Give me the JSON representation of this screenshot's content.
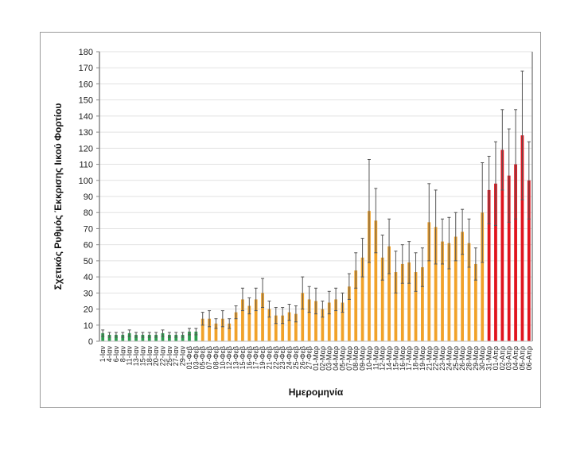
{
  "chart_data": {
    "type": "bar",
    "title": "",
    "xlabel": "Ημερομηνία",
    "ylabel": "Σχετικός Ρυθμός Έκκρισης Ιικού Φορτίου",
    "ylim": [
      0,
      180
    ],
    "yticks": [
      0,
      10,
      20,
      30,
      40,
      50,
      60,
      70,
      80,
      90,
      100,
      110,
      120,
      130,
      140,
      150,
      160,
      170,
      180
    ],
    "grid": true,
    "colors": {
      "green": "#2e9e4f",
      "orange": "#f0a22a",
      "red": "#e0141e",
      "error": "#555555"
    },
    "categories": [
      "1-Ιαν",
      "4-Ιαν",
      "6-Ιαν",
      "8-Ιαν",
      "11-Ιαν",
      "13-Ιαν",
      "15-Ιαν",
      "18-Ιαν",
      "20-Ιαν",
      "22-Ιαν",
      "25-Ιαν",
      "27-Ιαν",
      "29-Ιαν",
      "01-Φεβ",
      "03-Φεβ",
      "05-Φεβ",
      "07-Φεβ",
      "08-Φεβ",
      "10-Φεβ",
      "12-Φεβ",
      "13-Φεβ",
      "15-Φεβ",
      "16-Φεβ",
      "17-Φεβ",
      "19-Φεβ",
      "21-Φεβ",
      "22-Φεβ",
      "23-Φεβ",
      "24-Φεβ",
      "25-Φεβ",
      "26-Φεβ",
      "27-Φεβ",
      "01-Μαρ",
      "02-Μαρ",
      "03-Μαρ",
      "04-Μαρ",
      "05-Μαρ",
      "07-Μαρ",
      "08-Μαρ",
      "09-Μαρ",
      "10-Μαρ",
      "11-Μαρ",
      "12-Μαρ",
      "14-Μαρ",
      "15-Μαρ",
      "16-Μαρ",
      "17-Μαρ",
      "18-Μαρ",
      "19-Μαρ",
      "21-Μαρ",
      "22-Μαρ",
      "23-Μαρ",
      "24-Μαρ",
      "25-Μαρ",
      "26-Μαρ",
      "28-Μαρ",
      "29-Μαρ",
      "30-Μαρ",
      "31-Μαρ",
      "01-Απρ",
      "02-Απρ",
      "03-Απρ",
      "04-Απρ",
      "05-Απρ",
      "06-Απρ"
    ],
    "values": [
      5,
      4,
      4,
      4,
      5,
      4,
      4,
      4,
      4,
      5,
      4,
      4,
      4,
      6,
      6,
      14,
      14,
      11,
      14,
      11,
      18,
      26,
      22,
      26,
      30,
      20,
      16,
      16,
      18,
      17,
      30,
      26,
      25,
      20,
      24,
      26,
      24,
      34,
      44,
      52,
      81,
      75,
      52,
      59,
      43,
      48,
      49,
      43,
      46,
      74,
      71,
      62,
      61,
      65,
      68,
      61,
      48,
      80,
      94,
      98,
      119,
      103,
      110,
      128,
      100
    ],
    "errors": [
      2,
      1.5,
      1.5,
      1.5,
      2,
      1.5,
      1.5,
      1.5,
      1.5,
      2,
      1.5,
      1.5,
      1.5,
      2,
      2,
      4,
      5,
      3,
      5,
      3,
      4,
      7,
      5,
      7,
      9,
      5,
      5,
      5,
      5,
      5,
      10,
      8,
      8,
      5,
      7,
      7,
      6,
      8,
      11,
      12,
      32,
      20,
      14,
      17,
      13,
      12,
      13,
      12,
      12,
      24,
      23,
      14,
      16,
      15,
      14,
      15,
      10,
      31,
      21,
      26,
      25,
      29,
      34,
      40,
      24
    ],
    "series_groups": [
      {
        "name": "green",
        "count": 15
      },
      {
        "name": "orange",
        "count": 43
      },
      {
        "name": "red",
        "count": 7
      }
    ]
  }
}
